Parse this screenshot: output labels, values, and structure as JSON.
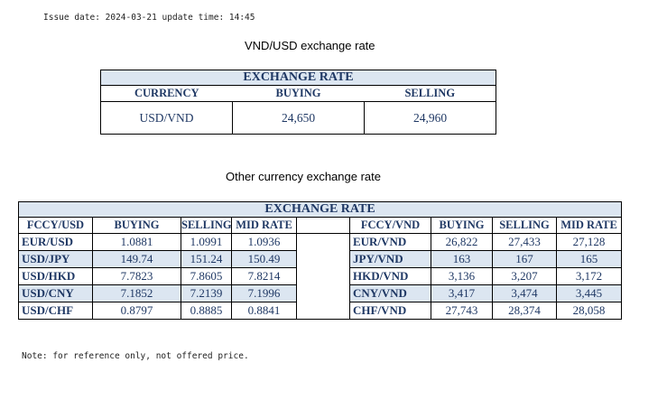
{
  "issue_line": "Issue date: 2024-03-21 update time: 14:45",
  "vnd_usd": {
    "title": "VND/USD exchange rate",
    "band": "EXCHANGE RATE",
    "headers": [
      "CURRENCY",
      "BUYING",
      "SELLING"
    ],
    "row": [
      "USD/VND",
      "24,650",
      "24,960"
    ]
  },
  "other": {
    "title": "Other currency exchange rate",
    "band": "EXCHANGE  RATE",
    "left_headers": [
      "FCCY/USD",
      "BUYING",
      "SELLING",
      "MID RATE"
    ],
    "right_headers": [
      "FCCY/VND",
      "BUYING",
      "SELLING",
      "MID RATE"
    ],
    "rows": [
      {
        "l": [
          "EUR/USD",
          "1.0881",
          "1.0991",
          "1.0936"
        ],
        "r": [
          "EUR/VND",
          "26,822",
          "27,433",
          "27,128"
        ]
      },
      {
        "l": [
          "USD/JPY",
          "149.74",
          "151.24",
          "150.49"
        ],
        "r": [
          "JPY/VND",
          "163",
          "167",
          "165"
        ]
      },
      {
        "l": [
          "USD/HKD",
          "7.7823",
          "7.8605",
          "7.8214"
        ],
        "r": [
          "HKD/VND",
          "3,136",
          "3,207",
          "3,172"
        ]
      },
      {
        "l": [
          "USD/CNY",
          "7.1852",
          "7.2139",
          "7.1996"
        ],
        "r": [
          "CNY/VND",
          "3,417",
          "3,474",
          "3,445"
        ]
      },
      {
        "l": [
          "USD/CHF",
          "0.8797",
          "0.8885",
          "0.8841"
        ],
        "r": [
          "CHF/VND",
          "27,743",
          "28,374",
          "28,058"
        ]
      }
    ]
  },
  "note": "Note: for reference only, not offered price."
}
